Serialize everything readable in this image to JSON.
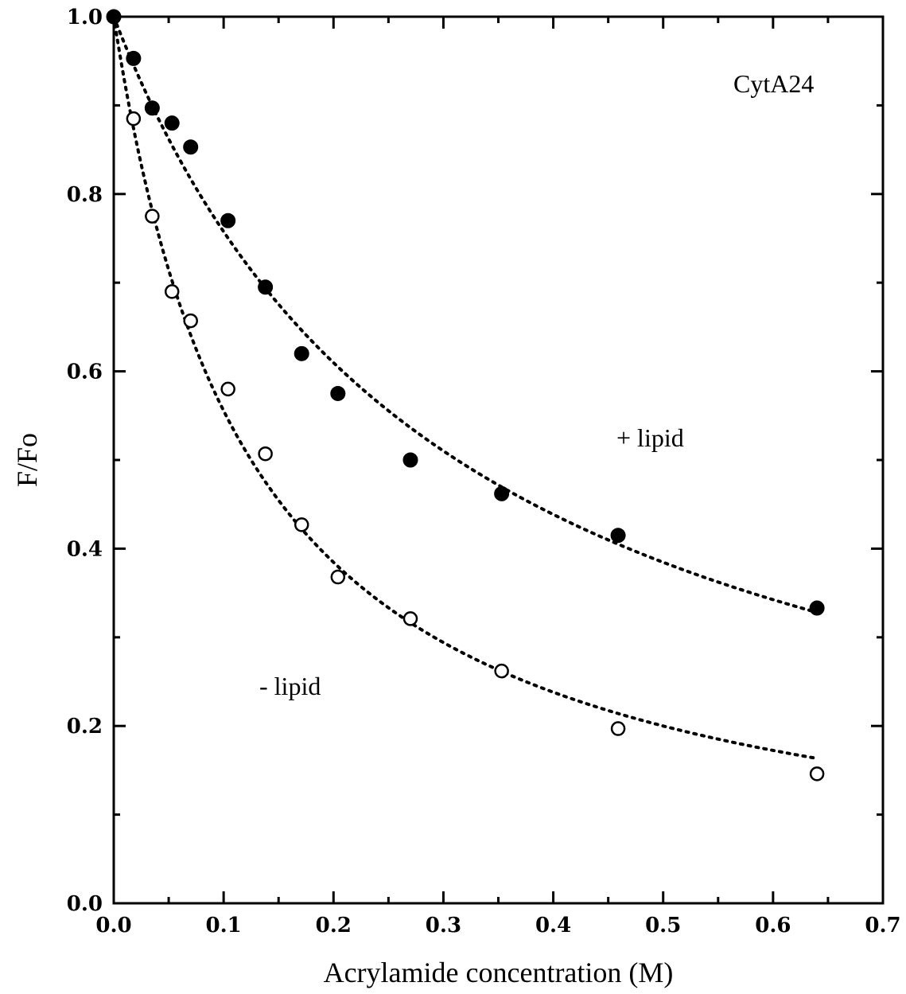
{
  "chart_data": {
    "type": "scatter",
    "xlabel": "Acrylamide concentration (M)",
    "ylabel": "F/Fo",
    "xlim": [
      0.0,
      0.7
    ],
    "ylim": [
      0.0,
      1.0
    ],
    "x_major_ticks": [
      0.0,
      0.1,
      0.2,
      0.3,
      0.4,
      0.5,
      0.6,
      0.7
    ],
    "x_tick_labels": [
      "0.0",
      "0.1",
      "0.2",
      "0.3",
      "0.4",
      "0.5",
      "0.6",
      "0.7"
    ],
    "y_major_ticks": [
      0.0,
      0.2,
      0.4,
      0.6,
      0.8,
      1.0
    ],
    "y_tick_labels": [
      "0.0",
      "0.2",
      "0.4",
      "0.6",
      "0.8",
      "1.0"
    ],
    "grid": false,
    "annotations": {
      "plus_lipid": "+ lipid",
      "minus_lipid": "- lipid",
      "protein": "CytA24"
    },
    "series": [
      {
        "marker": "filled-circle",
        "fit_line": "dotted",
        "x": [
          0.0,
          0.018,
          0.035,
          0.053,
          0.07,
          0.104,
          0.138,
          0.171,
          0.204,
          0.27,
          0.353,
          0.459,
          0.64
        ],
        "y": [
          1.0,
          0.953,
          0.897,
          0.88,
          0.853,
          0.77,
          0.695,
          0.62,
          0.575,
          0.5,
          0.462,
          0.415,
          0.333
        ]
      },
      {
        "marker": "open-circle",
        "fit_line": "dotted",
        "x": [
          0.018,
          0.035,
          0.053,
          0.07,
          0.104,
          0.138,
          0.171,
          0.204,
          0.27,
          0.353,
          0.459,
          0.64
        ],
        "y": [
          0.885,
          0.775,
          0.69,
          0.657,
          0.58,
          0.507,
          0.427,
          0.368,
          0.321,
          0.262,
          0.197,
          0.146
        ]
      }
    ]
  }
}
